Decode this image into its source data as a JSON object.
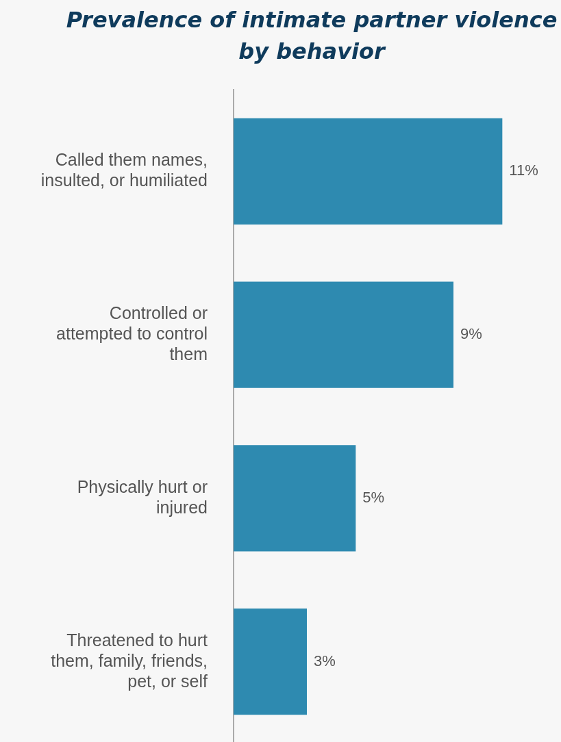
{
  "chart_data": {
    "type": "bar",
    "orientation": "horizontal",
    "title": "Prevalence of intimate partner violence by behavior",
    "categories": [
      "Called them names, insulted, or humiliated",
      "Controlled or attempted to control them",
      "Physically hurt or injured",
      "Threatened to hurt them, family, friends, pet, or self"
    ],
    "values": [
      11,
      9,
      5,
      3
    ],
    "value_labels": [
      "11%",
      "9%",
      "5%",
      "3%"
    ],
    "color": "#2e8ab0"
  }
}
